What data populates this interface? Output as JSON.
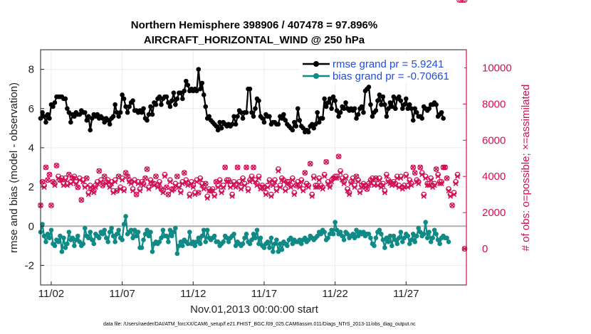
{
  "chart_data": {
    "type": "line",
    "title": "Northern Hemisphere 398906 / 407478 = 97.896%",
    "subtitle": "AIRCRAFT_HORIZONTAL_WIND @ 250 hPa",
    "xlabel": "Nov.01,2013 00:00:00 start",
    "ylabel": "rmse and bias (model - observation)",
    "ylabel_right": "# of obs: o=possible; ×=assimilated",
    "footer": "data file: /Users/raeder/DAI/ATM_forcXX/CAM6_setup/f.e21.FHIST_BGC.f09_025.CAM6assim.011/Diags_NTrS_2013-11/obs_diag_output.nc",
    "x_tick_labels": [
      "11/02",
      "11/07",
      "11/12",
      "11/17",
      "11/22",
      "11/27"
    ],
    "x_tick_days": [
      2,
      7,
      12,
      17,
      22,
      27
    ],
    "xlim_days": [
      1.25,
      31.25
    ],
    "ylim": [
      -3,
      9
    ],
    "y_ticks": [
      "-2",
      "0",
      "2",
      "4",
      "6",
      "8"
    ],
    "y_tick_values": [
      -2,
      0,
      2,
      4,
      6,
      8
    ],
    "ylim_right": [
      -2000,
      11000
    ],
    "y_ticks_right": [
      "0",
      "2000",
      "4000",
      "6000",
      "8000",
      "10000"
    ],
    "y_tick_values_right": [
      0,
      2000,
      4000,
      6000,
      8000,
      10000
    ],
    "grid": true,
    "legend_position": "top-right",
    "colors": {
      "rmse": "#000000",
      "bias": "#0f8a86",
      "obs": "#d10f55",
      "zero_line": "#b0b0b0",
      "grid": "#ebebeb",
      "legend_text": "#1f4ed8"
    },
    "x_days": [
      1.25,
      1.375,
      1.5,
      1.625,
      1.75,
      1.875,
      2.0,
      2.125,
      2.25,
      2.375,
      2.5,
      2.625,
      2.75,
      2.875,
      3.0,
      3.125,
      3.25,
      3.375,
      3.5,
      3.625,
      3.75,
      3.875,
      4.0,
      4.125,
      4.25,
      4.375,
      4.5,
      4.625,
      4.75,
      4.875,
      5.0,
      5.125,
      5.25,
      5.375,
      5.5,
      5.625,
      5.75,
      5.875,
      6.0,
      6.125,
      6.25,
      6.375,
      6.5,
      6.625,
      6.75,
      6.875,
      7.0,
      7.125,
      7.25,
      7.375,
      7.5,
      7.625,
      7.75,
      7.875,
      8.0,
      8.125,
      8.25,
      8.375,
      8.5,
      8.625,
      8.75,
      8.875,
      9.0,
      9.125,
      9.25,
      9.375,
      9.5,
      9.625,
      9.75,
      9.875,
      10.0,
      10.125,
      10.25,
      10.375,
      10.5,
      10.625,
      10.75,
      10.875,
      11.0,
      11.125,
      11.25,
      11.375,
      11.5,
      11.625,
      11.75,
      11.875,
      12.0,
      12.125,
      12.25,
      12.375,
      12.5,
      12.625,
      12.75,
      12.875,
      13.0,
      13.125,
      13.25,
      13.375,
      13.5,
      13.625,
      13.75,
      13.875,
      14.0,
      14.125,
      14.25,
      14.375,
      14.5,
      14.625,
      14.75,
      14.875,
      15.0,
      15.125,
      15.25,
      15.375,
      15.5,
      15.625,
      15.75,
      15.875,
      16.0,
      16.125,
      16.25,
      16.375,
      16.5,
      16.625,
      16.75,
      16.875,
      17.0,
      17.125,
      17.25,
      17.375,
      17.5,
      17.625,
      17.75,
      17.875,
      18.0,
      18.125,
      18.25,
      18.375,
      18.5,
      18.625,
      18.75,
      18.875,
      19.0,
      19.125,
      19.25,
      19.375,
      19.5,
      19.625,
      19.75,
      19.875,
      20.0,
      20.125,
      20.25,
      20.375,
      20.5,
      20.625,
      20.75,
      20.875,
      21.0,
      21.125,
      21.25,
      21.375,
      21.5,
      21.625,
      21.75,
      21.875,
      22.0,
      22.125,
      22.25,
      22.375,
      22.5,
      22.625,
      22.75,
      22.875,
      23.0,
      23.125,
      23.25,
      23.375,
      23.5,
      23.625,
      23.75,
      23.875,
      24.0,
      24.125,
      24.25,
      24.375,
      24.5,
      24.625,
      24.75,
      24.875,
      25.0,
      25.125,
      25.25,
      25.375,
      25.5,
      25.625,
      25.75,
      25.875,
      26.0,
      26.125,
      26.25,
      26.375,
      26.5,
      26.625,
      26.75,
      26.875,
      27.0,
      27.125,
      27.25,
      27.375,
      27.5,
      27.625,
      27.75,
      27.875,
      28.0,
      28.125,
      28.25,
      28.375,
      28.5,
      28.625,
      28.75,
      28.875,
      29.0,
      29.125,
      29.25,
      29.375,
      29.5,
      29.625,
      29.75,
      29.875,
      30.0,
      30.125,
      30.25,
      30.375,
      30.5,
      30.625,
      30.75,
      30.875,
      31.0,
      31.125
    ],
    "series": [
      {
        "name": "rmse grand pr = 5.9241",
        "values": [
          5.5,
          5.8,
          5.6,
          5.3,
          5.7,
          5.5,
          6.2,
          6.1,
          6.3,
          6.6,
          6.6,
          6.6,
          6.6,
          6.5,
          6.5,
          6.0,
          5.8,
          5.3,
          5.7,
          5.6,
          5.8,
          5.7,
          5.7,
          5.9,
          5.8,
          5.8,
          5.4,
          5.6,
          4.9,
          5.5,
          5.7,
          5.6,
          5.7,
          5.5,
          5.6,
          5.5,
          5.3,
          5.5,
          5.4,
          5.2,
          5.5,
          5.6,
          6.2,
          5.8,
          5.6,
          5.8,
          6.7,
          6.5,
          6.1,
          5.8,
          6.1,
          6.3,
          6.4,
          5.9,
          5.9,
          5.8,
          5.9,
          5.8,
          6.0,
          5.5,
          5.4,
          5.7,
          6.1,
          5.7,
          6.3,
          6.2,
          6.5,
          6.6,
          6.2,
          6.5,
          6.6,
          6.6,
          6.3,
          6.1,
          6.4,
          6.8,
          6.2,
          6.5,
          6.8,
          6.8,
          6.5,
          6.9,
          7.4,
          7.2,
          6.9,
          7.0,
          6.9,
          7.0,
          6.9,
          8.0,
          7.0,
          7.3,
          6.7,
          6.1,
          5.5,
          5.6,
          5.4,
          5.3,
          5.2,
          5.1,
          4.9,
          5.3,
          5.0,
          5.3,
          5.2,
          5.1,
          5.2,
          5.1,
          5.2,
          5.6,
          5.2,
          5.6,
          5.9,
          5.8,
          5.5,
          5.8,
          5.8,
          7.0,
          7.0,
          5.8,
          5.6,
          6.0,
          6.5,
          6.4,
          5.6,
          5.5,
          5.3,
          5.7,
          5.6,
          5.6,
          5.2,
          5.3,
          5.3,
          5.2,
          5.2,
          5.6,
          5.5,
          5.7,
          5.4,
          5.2,
          5.1,
          5.0,
          4.9,
          5.3,
          5.1,
          6.0,
          5.4,
          5.1,
          5.0,
          4.8,
          4.9,
          4.8,
          5.1,
          5.2,
          5.0,
          5.2,
          5.8,
          5.3,
          5.5,
          5.5,
          6.5,
          6.1,
          6.3,
          6.5,
          6.0,
          6.6,
          6.4,
          5.9,
          5.6,
          5.8,
          6.1,
          6.0,
          6.3,
          6.0,
          5.9,
          6.0,
          5.9,
          6.0,
          5.5,
          5.7,
          6.0,
          6.1,
          5.8,
          6.9,
          7.0,
          7.1,
          6.2,
          5.6,
          5.8,
          5.9,
          6.4,
          6.7,
          6.2,
          6.6,
          6.2,
          5.6,
          6.0,
          6.3,
          6.1,
          6.6,
          6.0,
          6.5,
          6.6,
          6.4,
          6.0,
          6.2,
          6.5,
          6.0,
          6.2,
          6.0,
          5.4,
          6.0,
          5.8,
          5.6,
          5.6,
          5.5,
          6.1,
          6.0,
          5.9,
          6.0,
          6.2,
          6.2,
          6.3,
          6.2,
          5.6,
          5.7,
          5.8,
          5.5
        ]
      },
      {
        "name": "bias grand pr = -0.70661",
        "values": [
          -0.3,
          0.1,
          -0.5,
          -0.8,
          -0.4,
          -0.6,
          -0.2,
          -0.9,
          -1.0,
          -0.7,
          -0.8,
          -0.5,
          -1.3,
          -0.6,
          -1.1,
          -0.9,
          -0.3,
          -0.7,
          -0.6,
          -1.0,
          -0.7,
          -0.5,
          -0.8,
          -1.0,
          -0.9,
          -0.1,
          -0.5,
          -0.6,
          -0.3,
          -0.7,
          -0.9,
          -0.4,
          -0.5,
          -0.6,
          -0.3,
          -0.4,
          -0.2,
          -0.6,
          -0.8,
          -0.3,
          -0.1,
          -0.5,
          -0.8,
          -0.4,
          -0.2,
          -0.6,
          -0.7,
          0.1,
          0.5,
          -0.4,
          -0.3,
          -0.2,
          -0.6,
          -0.2,
          -0.5,
          -0.3,
          -1.1,
          -1.1,
          -0.7,
          -0.4,
          -0.2,
          -0.5,
          -0.3,
          -1.3,
          -0.9,
          -0.8,
          -0.9,
          -0.8,
          -0.6,
          -0.2,
          -0.5,
          -0.5,
          -0.8,
          -0.2,
          -0.5,
          -0.3,
          -0.1,
          -1.4,
          -1.0,
          -0.8,
          -1.0,
          -0.7,
          -0.8,
          -0.9,
          -0.3,
          -0.9,
          -0.8,
          -1.0,
          -0.8,
          -0.6,
          -0.9,
          -0.5,
          -0.2,
          -0.8,
          -0.2,
          -0.6,
          -0.7,
          -0.6,
          -0.5,
          -0.8,
          -0.8,
          -1.0,
          -0.9,
          -0.8,
          -0.5,
          -0.6,
          -0.8,
          -0.6,
          -0.5,
          -0.4,
          -1.0,
          -0.8,
          -0.9,
          -1.0,
          -0.9,
          -0.6,
          -0.4,
          -0.8,
          -0.9,
          -0.7,
          -0.4,
          -0.6,
          -0.2,
          -0.9,
          -0.6,
          -1.0,
          -1.1,
          -0.9,
          -0.8,
          -1.1,
          -0.6,
          -1.3,
          -0.9,
          -0.7,
          -1.3,
          -0.9,
          -1.2,
          -0.8,
          -0.9,
          -1.0,
          -0.7,
          -0.6,
          -0.9,
          -0.7,
          -0.8,
          -0.8,
          -0.7,
          -0.9,
          -0.7,
          -0.6,
          -0.8,
          -0.7,
          -0.5,
          -0.6,
          -0.7,
          -0.6,
          -0.5,
          -0.3,
          -0.4,
          -0.2,
          -0.3,
          -0.7,
          -0.6,
          -0.4,
          -0.2,
          -0.4,
          0.2,
          -0.2,
          -0.4,
          -0.3,
          -0.5,
          -0.7,
          -0.3,
          -0.4,
          -0.6,
          -0.5,
          -0.4,
          -0.6,
          -0.2,
          -0.5,
          -0.3,
          -0.4,
          -0.3,
          -0.5,
          -0.4,
          -0.4,
          -0.6,
          -0.9,
          -1.0,
          -0.6,
          -0.3,
          -0.2,
          -0.4,
          -0.7,
          -1.1,
          -0.6,
          -0.8,
          -0.5,
          -1.0,
          -0.5,
          -0.7,
          -0.9,
          -0.6,
          -0.3,
          -0.8,
          -0.6,
          -0.4,
          -0.5,
          -0.9,
          -0.7,
          -0.4,
          -0.8,
          -0.5,
          -0.1,
          -0.3,
          -0.5,
          -0.4,
          0.2,
          -0.6,
          -0.3,
          -0.8,
          -0.6,
          -0.2,
          -0.4,
          -0.7,
          -0.9,
          -0.6,
          -0.5,
          -0.6,
          -0.6,
          -0.8
        ]
      }
    ],
    "obs_counts": {
      "possible": [
        2400,
        3700,
        3500,
        4500,
        3800,
        4100,
        2400,
        3700,
        3600,
        4600,
        4000,
        3800,
        3900,
        3600,
        3900,
        3600,
        4100,
        3700,
        3900,
        4000,
        3700,
        3400,
        3900,
        2700,
        3800,
        3500,
        3900,
        3100,
        3500,
        3300,
        3200,
        3500,
        3700,
        4300,
        3800,
        3500,
        4000,
        3700,
        3800,
        3500,
        3700,
        3200,
        3800,
        3200,
        4000,
        3400,
        3900,
        3300,
        4200,
        4000,
        3800,
        3700,
        3300,
        3800,
        3000,
        3700,
        3300,
        3700,
        3600,
        3900,
        4400,
        3400,
        3800,
        3600,
        3600,
        4000,
        3500,
        3700,
        3300,
        3200,
        4100,
        3400,
        3000,
        3800,
        3300,
        3300,
        3600,
        4000,
        3500,
        3200,
        3700,
        4200,
        3800,
        3600,
        3000,
        3700,
        3500,
        3100,
        3800,
        3100,
        3900,
        3600,
        3400,
        3600,
        2900,
        3300,
        3200,
        3300,
        3000,
        3700,
        3500,
        3800,
        3200,
        3500,
        4500,
        3800,
        3800,
        3500,
        3000,
        3700,
        3500,
        4500,
        3700,
        3400,
        3900,
        3600,
        4500,
        3300,
        3800,
        4000,
        4500,
        3800,
        3600,
        4000,
        3400,
        3500,
        3400,
        3100,
        3500,
        3800,
        3000,
        3600,
        3800,
        3300,
        4400,
        3500,
        3900,
        3800,
        3300,
        3700,
        3700,
        3500,
        3900,
        3100,
        3500,
        3700,
        3500,
        3800,
        3300,
        4200,
        3600,
        3500,
        4700,
        3000,
        4000,
        3500,
        3500,
        3900,
        3500,
        3400,
        4100,
        4800,
        3700,
        3500,
        3800,
        3900,
        4000,
        4000,
        5100,
        4300,
        3900,
        3700,
        4000,
        3300,
        3100,
        3700,
        3900,
        3500,
        4000,
        3800,
        3200,
        3500,
        3600,
        3500,
        3300,
        3600,
        3800,
        3900,
        3600,
        3900,
        3600,
        3900,
        3500,
        3600,
        3200,
        4100,
        3800,
        3700,
        3600,
        3700,
        3600,
        4000,
        3500,
        4000,
        3400,
        3500,
        4100,
        3500,
        3800,
        3600,
        4500,
        4200,
        3800,
        3700,
        4500,
        4200,
        3000,
        4000,
        3600,
        3600,
        3900,
        3500,
        3600,
        4400,
        4100,
        3700,
        3700,
        4500,
        4500,
        3900,
        3300,
        3000,
        2400,
        3100,
        3700,
        4100
      ],
      "assimilated": [
        2400,
        3700,
        3400,
        4500,
        3800,
        4100,
        2400,
        3700,
        3500,
        4600,
        3900,
        3800,
        3800,
        3500,
        3800,
        3500,
        4100,
        3600,
        3900,
        3900,
        3600,
        3400,
        3800,
        2700,
        3700,
        3400,
        3900,
        3000,
        3400,
        3300,
        3100,
        3400,
        3600,
        4300,
        3700,
        3500,
        4000,
        3600,
        3700,
        3400,
        3600,
        3100,
        3700,
        3200,
        4000,
        3300,
        3800,
        3200,
        4200,
        4000,
        3700,
        3600,
        3200,
        3700,
        3000,
        3600,
        3200,
        3600,
        3500,
        3900,
        4400,
        3300,
        3700,
        3600,
        3500,
        4000,
        3400,
        3600,
        3300,
        3100,
        4000,
        3400,
        3000,
        3700,
        3200,
        3300,
        3500,
        4000,
        3400,
        3100,
        3600,
        4200,
        3700,
        3500,
        2900,
        3600,
        3400,
        3000,
        3700,
        3100,
        3800,
        3500,
        3300,
        3600,
        2800,
        3200,
        3200,
        3200,
        2900,
        3700,
        3400,
        3700,
        3100,
        3400,
        4500,
        3700,
        3700,
        3400,
        2900,
        3600,
        3400,
        4500,
        3600,
        3300,
        3800,
        3500,
        4500,
        3200,
        3700,
        3900,
        4500,
        3700,
        3500,
        3900,
        3300,
        3400,
        3300,
        3000,
        3400,
        3700,
        2900,
        3500,
        3700,
        3200,
        4300,
        3400,
        3800,
        3700,
        3200,
        3600,
        3600,
        3400,
        3800,
        3000,
        3500,
        3600,
        3400,
        3700,
        3200,
        4200,
        3500,
        3400,
        4700,
        2900,
        3900,
        3400,
        3400,
        3800,
        3400,
        3300,
        4000,
        4800,
        3600,
        3400,
        3700,
        3900,
        3900,
        3900,
        5100,
        4200,
        3800,
        3600,
        3900,
        3200,
        3000,
        3600,
        3800,
        3400,
        4000,
        3700,
        3100,
        3400,
        3500,
        3400,
        3300,
        3500,
        3700,
        3800,
        3500,
        3900,
        3500,
        3800,
        3400,
        3500,
        3100,
        4000,
        3700,
        3600,
        3500,
        3600,
        3500,
        3900,
        3400,
        3900,
        3300,
        3400,
        4000,
        3400,
        3700,
        3500,
        4500,
        4200,
        3700,
        3600,
        4500,
        4100,
        2900,
        3900,
        3500,
        3500,
        3800,
        3400,
        3500,
        4400,
        4000,
        3600,
        3600,
        4500,
        4500,
        3900,
        3200,
        2900,
        2400,
        3000,
        3600,
        4000
      ],
      "last_point": {
        "x_day": 31.125,
        "count": 0
      }
    }
  }
}
